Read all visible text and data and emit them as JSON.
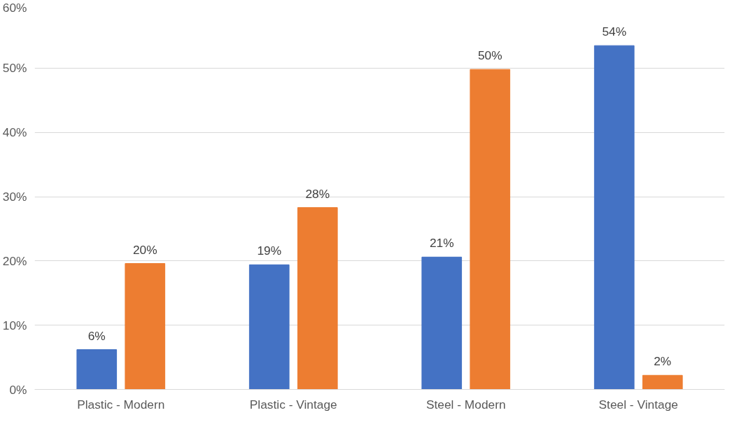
{
  "chart_data": {
    "type": "bar",
    "categories": [
      "Plastic - Modern",
      "Plastic - Vintage",
      "Steel - Modern",
      "Steel - Vintage"
    ],
    "series": [
      {
        "color": "#4472c4",
        "values": [
          6.2,
          19.4,
          20.6,
          53.5
        ],
        "value_labels": [
          "6%",
          "19%",
          "21%",
          "54%"
        ]
      },
      {
        "color": "#ed7d31",
        "values": [
          19.6,
          28.3,
          49.8,
          2.2
        ],
        "value_labels": [
          "20%",
          "28%",
          "50%",
          "2%"
        ]
      }
    ],
    "ylim": [
      0,
      60
    ],
    "yticks": [
      {
        "value": 0,
        "label": "0%"
      },
      {
        "value": 10,
        "label": "10%"
      },
      {
        "value": 20,
        "label": "20%"
      },
      {
        "value": 30,
        "label": "30%"
      },
      {
        "value": 40,
        "label": "40%"
      },
      {
        "value": 50,
        "label": "50%"
      },
      {
        "value": 60,
        "label": "60%"
      }
    ],
    "grid": "y"
  }
}
